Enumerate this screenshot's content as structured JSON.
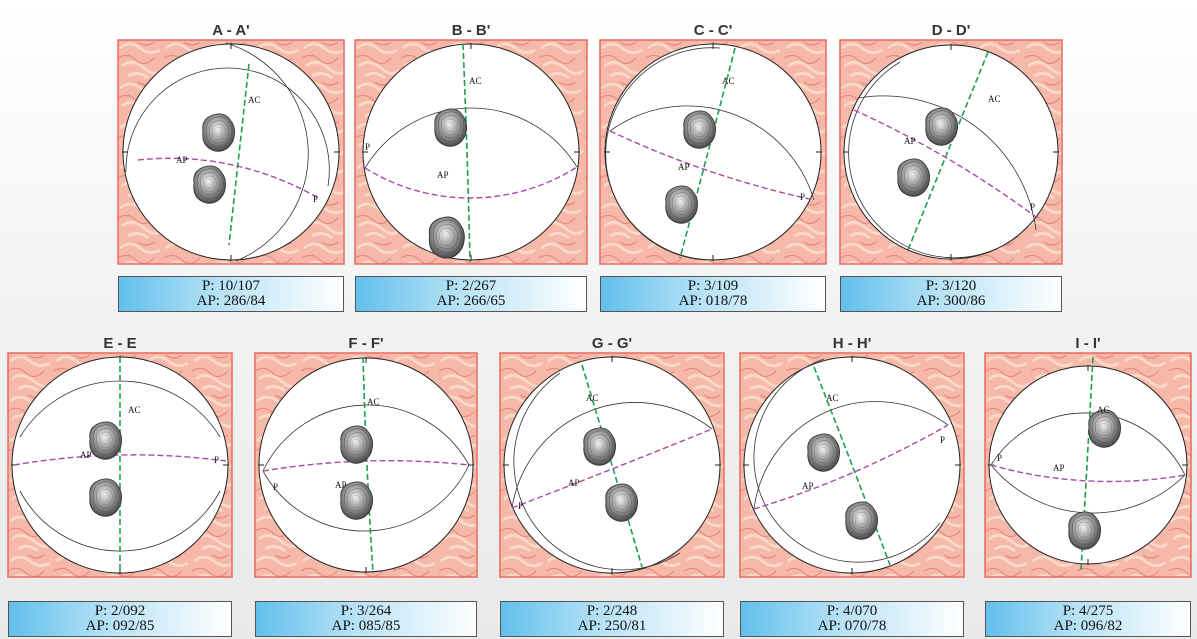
{
  "colors": {
    "frame": "#e86a62",
    "tile_bg": "#f6b8a8",
    "net_fill": "#ffffff",
    "ac_line": "#1f9e4f",
    "ap_line": "#a64ca6",
    "label_gradient_start": "#62c0ec",
    "label_gradient_end": "#ffffff"
  },
  "panels": [
    {
      "title": "A - A'",
      "p": "P: 10/107",
      "ap": "AP: 286/84"
    },
    {
      "title": "B - B'",
      "p": "P: 2/267",
      "ap": "AP: 266/65"
    },
    {
      "title": "C - C'",
      "p": "P: 3/109",
      "ap": "AP: 018/78"
    },
    {
      "title": "D - D'",
      "p": "P: 3/120",
      "ap": "AP: 300/86"
    },
    {
      "title": "E - E",
      "p": "P: 2/092",
      "ap": "AP: 092/85"
    },
    {
      "title": "F - F'",
      "p": "P: 3/264",
      "ap": "AP: 085/85"
    },
    {
      "title": "G - G'",
      "p": "P: 2/248",
      "ap": "AP: 250/81"
    },
    {
      "title": "H - H'",
      "p": "P: 4/070",
      "ap": "AP: 070/78"
    },
    {
      "title": "I - I'",
      "p": "P: 4/275",
      "ap": "AP: 096/82"
    }
  ],
  "plane_labels": {
    "ac": "AC",
    "ap": "AP",
    "p": "P"
  }
}
